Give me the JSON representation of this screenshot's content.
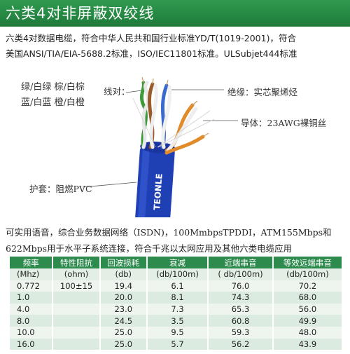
{
  "header": {
    "title": "六类4对非屏蔽双绞线"
  },
  "intro": {
    "line1": "六类4对数据电缆，符合中华人民共和国行业标准YD/T(1019-2001)，符合",
    "line2": "美国ANSI/TIA/EIA-5688.2标准，ISO/IEC11801标准。ULSubjet444标准"
  },
  "pairs": {
    "line1": "绿/白绿 棕/白棕",
    "line2": "蓝/白蓝 橙/白橙",
    "label": "线对："
  },
  "labels": {
    "insulation": "绝缘：实芯聚烯烃",
    "conductor": "导体：23AWG裸铜丝",
    "jacket": "护套：阻燃PVC",
    "brand": "TEONLE"
  },
  "colors": {
    "banner": "#2f9a4f",
    "jacket_blue": "#1f3fb5",
    "pair_green": "#3f9a3a",
    "pair_brown": "#9a5a2a",
    "pair_blue": "#3a6ad0",
    "pair_orange": "#e08a2a",
    "table_header": "#2e8b4e"
  },
  "description": {
    "line1": "可实用语音，综合业务数据网络（ISDN)，100MmbpsTPDDI，ATM155Mbps和",
    "line2": "622Mbps用于水平子系统连接，符合千兆以太网应用及其他六类电缆应用"
  },
  "table": {
    "headers": [
      "频率",
      "特性阻抗",
      "回波损耗",
      "衰减",
      "近端串音",
      "等效远端串音"
    ],
    "units": [
      "(Mhz)",
      "(ohm)",
      "(db)",
      "(db/100m)",
      "( db/100m)",
      "(db/100m)"
    ],
    "rows": [
      [
        "0.772",
        "100±15",
        "19.4",
        "6.1",
        "76.0",
        "70.2"
      ],
      [
        "1.0",
        "",
        "20.0",
        "8.1",
        "74.3",
        "68.0"
      ],
      [
        "4.0",
        "",
        "23.0",
        "7.3",
        "65.3",
        "56.0"
      ],
      [
        "8.0",
        "",
        "24.5",
        "3.5",
        "60.8",
        "49.9"
      ],
      [
        "10.0",
        "",
        "25.0",
        "9.5",
        "59.3",
        "48.0"
      ],
      [
        "16.0",
        "",
        "25.0",
        "5.7",
        "56.2",
        "43.9"
      ]
    ]
  }
}
